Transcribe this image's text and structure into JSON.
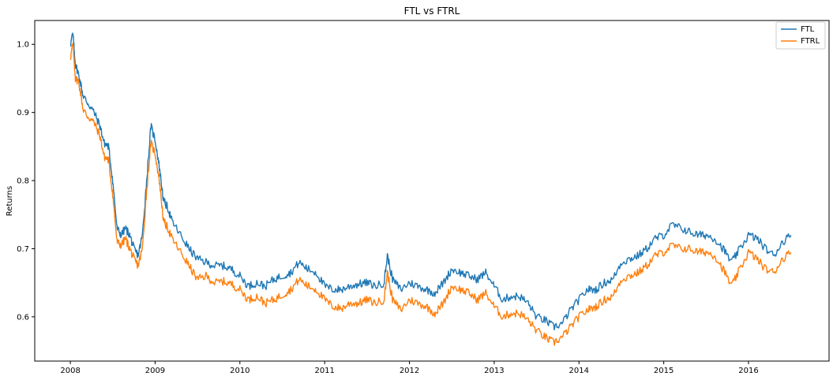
{
  "chart_data": {
    "type": "line",
    "title": "FTL vs FTRL",
    "xlabel": "",
    "ylabel": "Returns",
    "xlim": [
      2007.58,
      2016.95
    ],
    "ylim": [
      0.535,
      1.035
    ],
    "xticks": [
      2008,
      2009,
      2010,
      2011,
      2012,
      2013,
      2014,
      2015,
      2016
    ],
    "xtick_labels": [
      "2008",
      "2009",
      "2010",
      "2011",
      "2012",
      "2013",
      "2014",
      "2015",
      "2016"
    ],
    "yticks": [
      0.6,
      0.7,
      0.8,
      0.9,
      1.0
    ],
    "ytick_labels": [
      "0.6",
      "0.7",
      "0.8",
      "0.9",
      "1.0"
    ],
    "legend_position": "top-right",
    "series": [
      {
        "name": "FTL",
        "color": "#1f77b4",
        "x": [
          2008.0,
          2008.03,
          2008.06,
          2008.1,
          2008.15,
          2008.2,
          2008.28,
          2008.35,
          2008.4,
          2008.45,
          2008.5,
          2008.55,
          2008.6,
          2008.65,
          2008.7,
          2008.75,
          2008.8,
          2008.85,
          2008.9,
          2008.95,
          2009.0,
          2009.05,
          2009.1,
          2009.15,
          2009.2,
          2009.3,
          2009.4,
          2009.5,
          2009.6,
          2009.7,
          2009.8,
          2009.9,
          2010.0,
          2010.1,
          2010.2,
          2010.3,
          2010.4,
          2010.5,
          2010.6,
          2010.7,
          2010.8,
          2010.9,
          2011.0,
          2011.1,
          2011.2,
          2011.3,
          2011.4,
          2011.5,
          2011.6,
          2011.7,
          2011.74,
          2011.8,
          2011.9,
          2012.0,
          2012.1,
          2012.2,
          2012.3,
          2012.4,
          2012.5,
          2012.6,
          2012.7,
          2012.8,
          2012.9,
          2013.0,
          2013.1,
          2013.2,
          2013.3,
          2013.4,
          2013.5,
          2013.6,
          2013.7,
          2013.8,
          2013.9,
          2014.0,
          2014.1,
          2014.2,
          2014.3,
          2014.4,
          2014.5,
          2014.6,
          2014.7,
          2014.8,
          2014.9,
          2015.0,
          2015.1,
          2015.2,
          2015.3,
          2015.4,
          2015.5,
          2015.6,
          2015.7,
          2015.8,
          2015.9,
          2016.0,
          2016.1,
          2016.2,
          2016.3,
          2016.4,
          2016.5
        ],
        "values": [
          1.0,
          1.015,
          0.97,
          0.955,
          0.925,
          0.915,
          0.9,
          0.88,
          0.855,
          0.85,
          0.8,
          0.73,
          0.72,
          0.73,
          0.72,
          0.7,
          0.69,
          0.72,
          0.8,
          0.88,
          0.86,
          0.82,
          0.77,
          0.76,
          0.74,
          0.72,
          0.7,
          0.685,
          0.68,
          0.675,
          0.675,
          0.67,
          0.66,
          0.645,
          0.65,
          0.645,
          0.655,
          0.66,
          0.665,
          0.68,
          0.67,
          0.665,
          0.645,
          0.64,
          0.64,
          0.645,
          0.648,
          0.65,
          0.645,
          0.65,
          0.69,
          0.655,
          0.64,
          0.65,
          0.645,
          0.64,
          0.635,
          0.65,
          0.67,
          0.665,
          0.66,
          0.655,
          0.665,
          0.645,
          0.625,
          0.63,
          0.63,
          0.62,
          0.6,
          0.595,
          0.585,
          0.59,
          0.61,
          0.625,
          0.64,
          0.64,
          0.65,
          0.655,
          0.68,
          0.685,
          0.69,
          0.7,
          0.715,
          0.72,
          0.735,
          0.73,
          0.725,
          0.72,
          0.72,
          0.715,
          0.7,
          0.68,
          0.7,
          0.72,
          0.715,
          0.7,
          0.69,
          0.71,
          0.72
        ]
      },
      {
        "name": "FTRL",
        "color": "#ff7f0e",
        "x": [
          2008.0,
          2008.03,
          2008.06,
          2008.1,
          2008.15,
          2008.2,
          2008.28,
          2008.35,
          2008.4,
          2008.45,
          2008.5,
          2008.55,
          2008.6,
          2008.65,
          2008.7,
          2008.75,
          2008.8,
          2008.85,
          2008.9,
          2008.95,
          2009.0,
          2009.05,
          2009.1,
          2009.15,
          2009.2,
          2009.3,
          2009.4,
          2009.5,
          2009.6,
          2009.7,
          2009.8,
          2009.9,
          2010.0,
          2010.1,
          2010.2,
          2010.3,
          2010.4,
          2010.5,
          2010.6,
          2010.7,
          2010.8,
          2010.9,
          2011.0,
          2011.1,
          2011.2,
          2011.3,
          2011.4,
          2011.5,
          2011.6,
          2011.7,
          2011.74,
          2011.8,
          2011.9,
          2012.0,
          2012.1,
          2012.2,
          2012.3,
          2012.4,
          2012.5,
          2012.6,
          2012.7,
          2012.8,
          2012.9,
          2013.0,
          2013.1,
          2013.2,
          2013.3,
          2013.4,
          2013.5,
          2013.6,
          2013.7,
          2013.8,
          2013.9,
          2014.0,
          2014.1,
          2014.2,
          2014.3,
          2014.4,
          2014.5,
          2014.6,
          2014.7,
          2014.8,
          2014.9,
          2015.0,
          2015.1,
          2015.2,
          2015.3,
          2015.4,
          2015.5,
          2015.6,
          2015.7,
          2015.8,
          2015.9,
          2016.0,
          2016.1,
          2016.2,
          2016.3,
          2016.4,
          2016.5
        ],
        "values": [
          0.98,
          1.0,
          0.95,
          0.945,
          0.905,
          0.895,
          0.885,
          0.865,
          0.835,
          0.83,
          0.78,
          0.71,
          0.705,
          0.715,
          0.7,
          0.685,
          0.675,
          0.7,
          0.785,
          0.855,
          0.84,
          0.8,
          0.74,
          0.73,
          0.715,
          0.695,
          0.675,
          0.655,
          0.66,
          0.65,
          0.652,
          0.648,
          0.64,
          0.625,
          0.63,
          0.62,
          0.625,
          0.632,
          0.64,
          0.655,
          0.645,
          0.64,
          0.625,
          0.615,
          0.612,
          0.62,
          0.62,
          0.625,
          0.62,
          0.625,
          0.665,
          0.625,
          0.61,
          0.625,
          0.62,
          0.615,
          0.605,
          0.62,
          0.645,
          0.64,
          0.635,
          0.625,
          0.635,
          0.615,
          0.6,
          0.605,
          0.605,
          0.595,
          0.58,
          0.57,
          0.562,
          0.57,
          0.585,
          0.6,
          0.61,
          0.615,
          0.625,
          0.63,
          0.655,
          0.66,
          0.665,
          0.675,
          0.69,
          0.695,
          0.705,
          0.7,
          0.7,
          0.695,
          0.695,
          0.69,
          0.67,
          0.645,
          0.67,
          0.695,
          0.685,
          0.67,
          0.665,
          0.685,
          0.695
        ]
      }
    ]
  }
}
